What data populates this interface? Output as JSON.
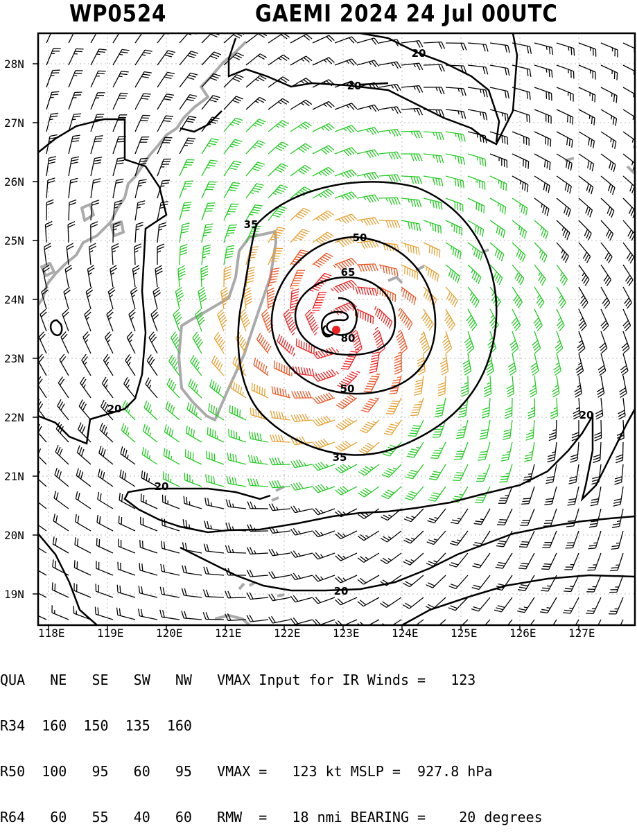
{
  "header": {
    "storm_id": "WP0524",
    "storm_title": "GAEMI 2024 24 Jul 00UTC"
  },
  "map": {
    "lat_labels": [
      "28N",
      "27N",
      "26N",
      "25N",
      "24N",
      "23N",
      "22N",
      "21N",
      "20N",
      "19N"
    ],
    "lon_labels": [
      "118E",
      "119E",
      "120E",
      "121E",
      "122E",
      "123E",
      "124E",
      "125E",
      "126E",
      "127E"
    ],
    "contour_labels": [
      "20",
      "20",
      "20",
      "20",
      "20",
      "20",
      "35",
      "35",
      "50",
      "50",
      "65",
      "80"
    ],
    "storm_center": "red-dot",
    "colors": {
      "barb_low": "#000000",
      "barb_34kt": "#22cc22",
      "barb_50kt": "#e8a030",
      "barb_64kt": "#ee5522",
      "barb_80kt": "#ee2222",
      "coastline": "#aaaaaa",
      "contour": "#000000",
      "storm_center": "#ee2222"
    }
  },
  "info": {
    "rows": [
      "QUA   NE   SE   SW   NW   VMAX Input for IR Winds =   123",
      "R34  160  150  135  160",
      "R50  100   95   60   95   VMAX =   123 kt MSLP =  927.8 hPa",
      "R64   60   55   40   60   RMW  =   18 nmi BEARING =    20 degrees"
    ]
  }
}
